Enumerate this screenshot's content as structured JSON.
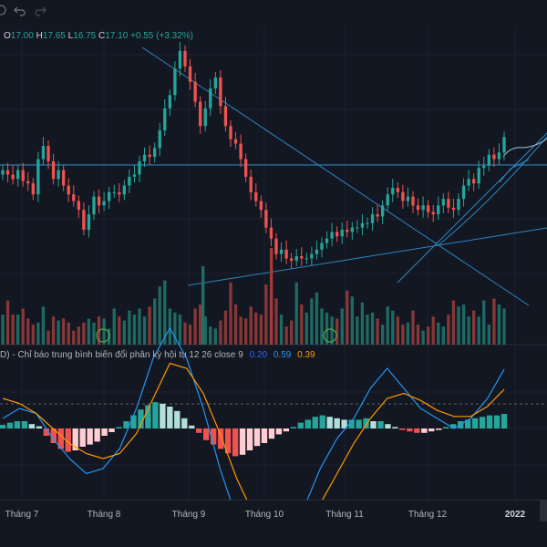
{
  "toolbar": {
    "icons": [
      "settings-icon",
      "undo-icon",
      "redo-icon"
    ]
  },
  "ohlc": {
    "o_label": "O",
    "o_value": "17.00",
    "h_label": "H",
    "h_value": "17.65",
    "l_label": "L",
    "l_value": "16.75",
    "c_label": "C",
    "c_value": "17.10",
    "change": "+0.55 (+3.32%)"
  },
  "macd_legend": {
    "title": "D) - Chỉ báo trung bình biến đổi phân kỳ hội tụ 12 26 close 9",
    "hist": "0.20",
    "macd": "0.59",
    "signal": "0.39"
  },
  "xaxis": {
    "labels": [
      "Tháng 7",
      "Tháng 8",
      "Tháng 9",
      "Tháng 10",
      "Tháng 11",
      "Tháng 12",
      "2022"
    ]
  },
  "colors": {
    "up": "#26a69a",
    "down": "#ef5350",
    "background": "#131722",
    "drawing_lines": "#2e86c1",
    "macd_line": "#2196f3",
    "signal_line": "#ff9800"
  },
  "chart_data": {
    "type": "candlestick",
    "title": "",
    "xlabel": "",
    "ylabel": "",
    "x_ticks": [
      "Tháng 7",
      "Tháng 8",
      "Tháng 9",
      "Tháng 10",
      "Tháng 11",
      "Tháng 12",
      "2022"
    ],
    "last_bar": {
      "open": 17.0,
      "high": 17.65,
      "low": 16.75,
      "close": 17.1,
      "change": 0.55,
      "change_pct": 3.32
    },
    "price_path": [
      15.6,
      15.4,
      15.2,
      15.6,
      15.1,
      15.0,
      14.5,
      16.1,
      16.7,
      16.0,
      15.2,
      15.6,
      14.9,
      14.5,
      14.2,
      13.8,
      12.9,
      13.6,
      14.4,
      14.0,
      14.2,
      14.6,
      14.6,
      14.5,
      14.9,
      15.3,
      15.4,
      16.0,
      16.3,
      16.2,
      16.6,
      17.4,
      18.4,
      19.0,
      20.2,
      21.0,
      20.3,
      19.6,
      18.7,
      17.6,
      18.4,
      19.3,
      19.8,
      18.5,
      17.6,
      17.0,
      16.8,
      16.1,
      15.3,
      14.6,
      14.2,
      13.8,
      13.0,
      12.5,
      11.8,
      12.0,
      11.6,
      11.5,
      11.7,
      11.6,
      11.6,
      11.8,
      12.0,
      12.3,
      12.5,
      12.8,
      12.6,
      12.9,
      12.8,
      13.0,
      13.0,
      13.2,
      13.2,
      13.6,
      13.5,
      14.0,
      14.5,
      14.8,
      14.6,
      14.2,
      14.4,
      14.0,
      13.8,
      14.0,
      13.7,
      13.6,
      14.0,
      14.3,
      13.9,
      13.8,
      14.3,
      14.9,
      15.2,
      15.0,
      15.7,
      15.8,
      16.3,
      16.1,
      16.4,
      17.1
    ],
    "volume": [
      30,
      44,
      30,
      30,
      36,
      26,
      20,
      22,
      38,
      14,
      28,
      24,
      26,
      22,
      14,
      18,
      22,
      26,
      22,
      28,
      26,
      16,
      36,
      28,
      24,
      34,
      30,
      36,
      28,
      38,
      46,
      58,
      64,
      36,
      32,
      30,
      22,
      20,
      36,
      40,
      28,
      18,
      16,
      24,
      34,
      62,
      40,
      28,
      26,
      38,
      32,
      30,
      60,
      50,
      46,
      30,
      18,
      24,
      62,
      40,
      32,
      46,
      52,
      36,
      32,
      28,
      26,
      36,
      54,
      48,
      28,
      42,
      30,
      32,
      26,
      20,
      38,
      34,
      28,
      20,
      22,
      34,
      20,
      14,
      18,
      28,
      22,
      18,
      30,
      44,
      38,
      40,
      28,
      34,
      28,
      44,
      20,
      46,
      40,
      36
    ],
    "histogram": [
      0.05,
      0.08,
      0.1,
      0.1,
      0.06,
      0.03,
      -0.1,
      -0.2,
      -0.28,
      -0.32,
      -0.3,
      -0.25,
      -0.22,
      -0.18,
      -0.1,
      -0.05,
      0.02,
      0.1,
      0.18,
      0.26,
      0.32,
      0.36,
      0.34,
      0.3,
      0.24,
      0.14,
      0.04,
      -0.06,
      -0.16,
      -0.22,
      -0.28,
      -0.34,
      -0.38,
      -0.36,
      -0.3,
      -0.24,
      -0.2,
      -0.14,
      -0.08,
      -0.04,
      0.02,
      0.08,
      0.12,
      0.16,
      0.18,
      0.16,
      0.14,
      0.12,
      0.12,
      0.12,
      0.14,
      0.1,
      0.1,
      0.06,
      0.02,
      -0.02,
      -0.04,
      -0.06,
      -0.06,
      -0.04,
      -0.02,
      0.02,
      0.06,
      0.1,
      0.12,
      0.14,
      0.16,
      0.18,
      0.18,
      0.2
    ],
    "zero_line": 0,
    "series": [
      {
        "values": [
          0.1,
          0.2,
          0.15,
          -0.1,
          -0.3,
          -0.45,
          -0.4,
          -0.2,
          0.2,
          0.7,
          1.0,
          0.7,
          0.2,
          -0.4,
          -0.9,
          -1.2,
          -1.25,
          -1.1,
          -0.8,
          -0.4,
          -0.1,
          0.1,
          0.4,
          0.6,
          0.4,
          0.2,
          0.1,
          0.0,
          0.1,
          0.3,
          0.59
        ]
      },
      {
        "values": [
          0.3,
          0.25,
          0.15,
          0.0,
          -0.15,
          -0.25,
          -0.3,
          -0.25,
          -0.05,
          0.3,
          0.65,
          0.6,
          0.35,
          -0.05,
          -0.5,
          -0.85,
          -1.05,
          -1.1,
          -1.0,
          -0.75,
          -0.45,
          -0.15,
          0.1,
          0.3,
          0.35,
          0.28,
          0.18,
          0.12,
          0.12,
          0.22,
          0.39
        ]
      }
    ]
  }
}
